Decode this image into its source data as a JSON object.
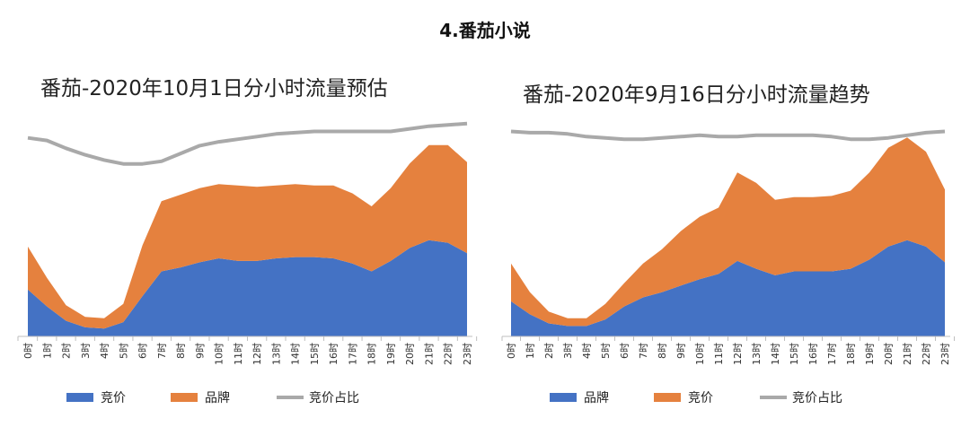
{
  "page_title": "4.番茄小说",
  "colors": {
    "blue": "#4472c4",
    "orange": "#e5813e",
    "gray": "#a9a9a9"
  },
  "chart_data": [
    {
      "type": "area",
      "title": "番茄-2020年10月1日分小时流量预估",
      "categories": [
        "0时",
        "1时",
        "2时",
        "3时",
        "4时",
        "5时",
        "6时",
        "7时",
        "8时",
        "9时",
        "10时",
        "11时",
        "12时",
        "13时",
        "14时",
        "15时",
        "16时",
        "17时",
        "18时",
        "19时",
        "20时",
        "21时",
        "22时",
        "23时"
      ],
      "stacked": true,
      "series": [
        {
          "name": "竞价",
          "type": "area",
          "color": "#4472c4",
          "values": [
            36,
            23,
            12,
            7,
            6,
            11,
            31,
            50,
            53,
            57,
            60,
            58,
            58,
            60,
            61,
            61,
            60,
            56,
            50,
            58,
            68,
            74,
            72,
            64
          ]
        },
        {
          "name": "品牌",
          "type": "area",
          "color": "#e5813e",
          "values": [
            33,
            22,
            12,
            8,
            8,
            14,
            39,
            54,
            56,
            57,
            57,
            58,
            57,
            56,
            56,
            55,
            56,
            54,
            50,
            56,
            65,
            73,
            75,
            70
          ]
        },
        {
          "name": "竞价占比",
          "type": "line",
          "color": "#a9a9a9",
          "values": [
            94,
            92,
            86,
            81,
            77,
            74,
            74,
            76,
            82,
            88,
            91,
            93,
            95,
            97,
            98,
            99,
            99,
            99,
            99,
            99,
            101,
            103,
            104,
            105
          ]
        }
      ],
      "legend": {
        "position": "bottom-left",
        "entries": [
          "竞价",
          "品牌",
          "竞价占比"
        ]
      },
      "grid": false
    },
    {
      "type": "area",
      "title": "番茄-2020年9月16日分小时流量趋势",
      "categories": [
        "0时",
        "1时",
        "2时",
        "3时",
        "4时",
        "5时",
        "6时",
        "7时",
        "8时",
        "9时",
        "10时",
        "11时",
        "12时",
        "13时",
        "14时",
        "15时",
        "16时",
        "17时",
        "18时",
        "19时",
        "20时",
        "21时",
        "22时",
        "23时"
      ],
      "stacked": true,
      "series": [
        {
          "name": "品牌",
          "type": "area",
          "color": "#4472c4",
          "values": [
            27,
            17,
            10,
            8,
            8,
            13,
            23,
            30,
            34,
            39,
            44,
            48,
            58,
            52,
            47,
            50,
            50,
            50,
            52,
            59,
            69,
            74,
            69,
            57
          ]
        },
        {
          "name": "竞价",
          "type": "area",
          "color": "#e5813e",
          "values": [
            29,
            17,
            9,
            6,
            6,
            12,
            18,
            26,
            33,
            42,
            48,
            51,
            68,
            66,
            58,
            57,
            57,
            58,
            60,
            67,
            76,
            79,
            73,
            56
          ]
        },
        {
          "name": "竞价占比",
          "type": "line",
          "color": "#a9a9a9",
          "values": [
            99,
            98,
            98,
            97,
            95,
            94,
            93,
            93,
            94,
            95,
            96,
            95,
            95,
            96,
            96,
            96,
            96,
            95,
            93,
            93,
            94,
            96,
            98,
            99
          ]
        }
      ],
      "legend": {
        "position": "bottom-left",
        "entries": [
          "品牌",
          "竞价",
          "竞价占比"
        ]
      },
      "grid": false
    }
  ]
}
